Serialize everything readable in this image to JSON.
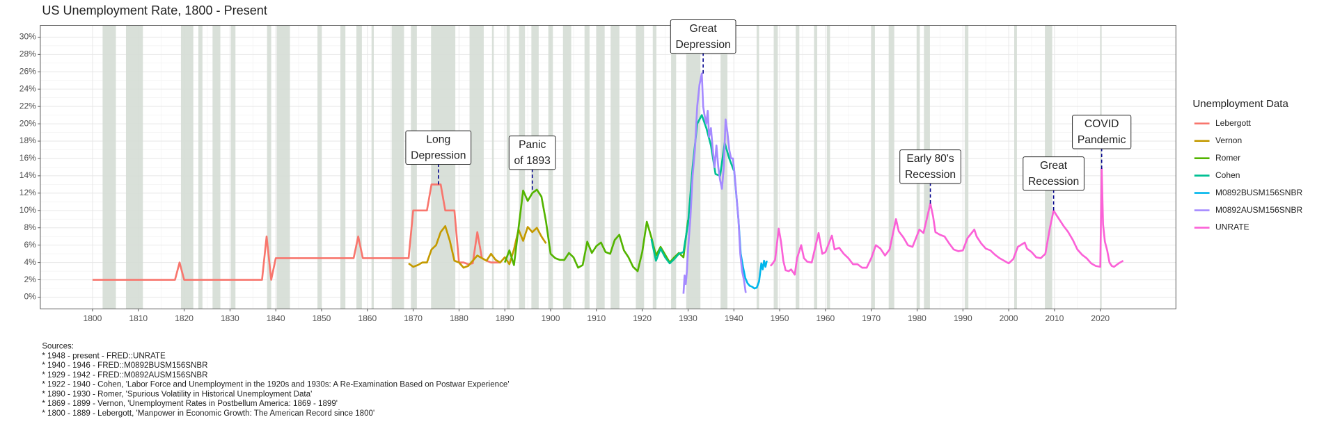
{
  "chart_data": {
    "type": "line",
    "title": "US Unemployment Rate, 1800 - Present",
    "legend": "right",
    "legend_title": "Unemployment Data",
    "grid": true,
    "xlim": [
      1788.6,
      2036.5
    ],
    "ylim": [
      -1.35,
      31.35
    ],
    "xticks": [
      1800,
      1810,
      1820,
      1830,
      1840,
      1850,
      1860,
      1870,
      1880,
      1890,
      1900,
      1910,
      1920,
      1930,
      1940,
      1950,
      1960,
      1970,
      1980,
      1990,
      2000,
      2010,
      2020
    ],
    "yticks": [
      {
        "value": 0,
        "label": "0%"
      },
      {
        "value": 2,
        "label": "2%"
      },
      {
        "value": 4,
        "label": "4%"
      },
      {
        "value": 6,
        "label": "6%"
      },
      {
        "value": 8,
        "label": "8%"
      },
      {
        "value": 10,
        "label": "10%"
      },
      {
        "value": 12,
        "label": "12%"
      },
      {
        "value": 14,
        "label": "14%"
      },
      {
        "value": 16,
        "label": "16%"
      },
      {
        "value": 18,
        "label": "18%"
      },
      {
        "value": 20,
        "label": "20%"
      },
      {
        "value": 22,
        "label": "22%"
      },
      {
        "value": 24,
        "label": "24%"
      },
      {
        "value": 26,
        "label": "26%"
      },
      {
        "value": 28,
        "label": "28%"
      },
      {
        "value": 30,
        "label": "30%"
      }
    ],
    "recession_color": "#d5ddd5",
    "recessions": [
      [
        1802.2,
        1805.1
      ],
      [
        1807.3,
        1811
      ],
      [
        1819.3,
        1822
      ],
      [
        1823.1,
        1824
      ],
      [
        1826.2,
        1827.9
      ],
      [
        1830.2,
        1831.2
      ],
      [
        1838.1,
        1839
      ],
      [
        1840.2,
        1843.1
      ],
      [
        1849.1,
        1850
      ],
      [
        1854.1,
        1855.2
      ],
      [
        1857.6,
        1858.8
      ],
      [
        1860.9,
        1861.4
      ],
      [
        1865.3,
        1868
      ],
      [
        1869.5,
        1870.8
      ],
      [
        1873.9,
        1879.2
      ],
      [
        1882.3,
        1885.4
      ],
      [
        1887.2,
        1887.6
      ],
      [
        1890.4,
        1891.1
      ],
      [
        1893.1,
        1894.4
      ],
      [
        1895.8,
        1897.4
      ],
      [
        1899.5,
        1900.5
      ],
      [
        1902.7,
        1904.5
      ],
      [
        1907.4,
        1908.5
      ],
      [
        1910,
        1911.8
      ],
      [
        1913.1,
        1915
      ],
      [
        1918.6,
        1920.4
      ],
      [
        1922.3,
        1923.1
      ],
      [
        1926.3,
        1927.4
      ],
      [
        1929.6,
        1932.7
      ],
      [
        1937.1,
        1938.6
      ],
      [
        1945,
        1945.5
      ],
      [
        1948.7,
        1949.6
      ],
      [
        1953.5,
        1954.3
      ],
      [
        1957.5,
        1958.2
      ],
      [
        1960.3,
        1961
      ],
      [
        1970,
        1970.8
      ],
      [
        1973.8,
        1975
      ],
      [
        1979.9,
        1980.6
      ],
      [
        1981.5,
        1982.8
      ],
      [
        1990.4,
        1991.2
      ],
      [
        2001.2,
        2001.8
      ],
      [
        2007.9,
        2009.5
      ],
      [
        2020,
        2020.3
      ]
    ],
    "series": [
      {
        "name": "Lebergott",
        "color": "#F8766D",
        "x": [
          1800,
          1801,
          1802,
          1803,
          1804,
          1805,
          1806,
          1807,
          1808,
          1809,
          1810,
          1811,
          1812,
          1813,
          1814,
          1815,
          1816,
          1817,
          1818,
          1819,
          1820,
          1821,
          1822,
          1823,
          1824,
          1825,
          1826,
          1827,
          1828,
          1829,
          1830,
          1831,
          1832,
          1833,
          1834,
          1835,
          1836,
          1837,
          1838,
          1839,
          1840,
          1841,
          1842,
          1843,
          1844,
          1845,
          1846,
          1847,
          1848,
          1849,
          1850,
          1851,
          1852,
          1853,
          1854,
          1855,
          1856,
          1857,
          1858,
          1859,
          1860,
          1861,
          1862,
          1863,
          1864,
          1865,
          1866,
          1867,
          1868,
          1869,
          1870,
          1871,
          1872,
          1873,
          1874,
          1875,
          1876,
          1877,
          1878,
          1879,
          1880,
          1881,
          1882,
          1883,
          1884,
          1885,
          1886,
          1887,
          1888,
          1889
        ],
        "values": [
          2,
          2,
          2,
          2,
          2,
          2,
          2,
          2,
          2,
          2,
          2,
          2,
          2,
          2,
          2,
          2,
          2,
          2,
          2,
          4,
          2,
          2,
          2,
          2,
          2,
          2,
          2,
          2,
          2,
          2,
          2,
          2,
          2,
          2,
          2,
          2,
          2,
          2,
          7,
          2,
          4.5,
          4.5,
          4.5,
          4.5,
          4.5,
          4.5,
          4.5,
          4.5,
          4.5,
          4.5,
          4.5,
          4.5,
          4.5,
          4.5,
          4.5,
          4.5,
          4.5,
          4.5,
          7,
          4.5,
          4.5,
          4.5,
          4.5,
          4.5,
          4.5,
          4.5,
          4.5,
          4.5,
          4.5,
          4.5,
          10,
          10,
          10,
          10,
          13,
          13,
          13,
          10,
          10,
          10,
          4,
          4,
          3.8,
          3.9,
          7.5,
          4.5,
          4.2,
          4,
          4,
          4
        ]
      },
      {
        "name": "Vernon",
        "color": "#C49A00",
        "x": [
          1869,
          1870,
          1871,
          1872,
          1873,
          1874,
          1875,
          1876,
          1877,
          1878,
          1879,
          1880,
          1881,
          1882,
          1883,
          1884,
          1885,
          1886,
          1887,
          1888,
          1889,
          1890,
          1891,
          1892,
          1893,
          1894,
          1895,
          1896,
          1897,
          1898,
          1899
        ],
        "values": [
          3.9,
          3.5,
          3.7,
          4,
          4,
          5.5,
          6,
          7.5,
          8.2,
          6.5,
          4.2,
          4,
          3.4,
          3.6,
          4.2,
          4.8,
          4.5,
          4.2,
          5,
          4.3,
          4,
          4.6,
          3.8,
          5.5,
          7.8,
          6.5,
          8.1,
          7.5,
          8,
          7,
          6.2
        ]
      },
      {
        "name": "Romer",
        "color": "#53B400",
        "x": [
          1890,
          1891,
          1892,
          1893,
          1894,
          1895,
          1896,
          1897,
          1898,
          1899,
          1900,
          1901,
          1902,
          1903,
          1904,
          1905,
          1906,
          1907,
          1908,
          1909,
          1910,
          1911,
          1912,
          1913,
          1914,
          1915,
          1916,
          1917,
          1918,
          1919,
          1920,
          1921,
          1922,
          1923,
          1924,
          1925,
          1926,
          1927,
          1928,
          1929,
          1930
        ],
        "values": [
          4.0,
          5.4,
          3.7,
          8.0,
          12.3,
          11.1,
          12.0,
          12.4,
          11.6,
          8.7,
          5.0,
          4.5,
          4.3,
          4.3,
          5.1,
          4.6,
          3.4,
          3.7,
          6.4,
          5.1,
          5.9,
          6.3,
          5.2,
          5.0,
          6.6,
          7.2,
          5.4,
          4.6,
          3.5,
          3.0,
          5.2,
          8.7,
          6.9,
          4.8,
          5.8,
          4.9,
          4.0,
          4.6,
          5.1,
          4.6,
          8.9
        ]
      },
      {
        "name": "Cohen",
        "color": "#00C094",
        "x": [
          1922,
          1923,
          1924,
          1925,
          1926,
          1927,
          1928,
          1929,
          1930,
          1931,
          1932,
          1933,
          1934,
          1935,
          1936,
          1937,
          1938,
          1939,
          1940
        ],
        "values": [
          6.7,
          4.2,
          5.6,
          4.6,
          3.9,
          4.4,
          5.0,
          5.2,
          8.5,
          15.0,
          20.0,
          21.0,
          19.5,
          17.5,
          14.2,
          14.0,
          17.8,
          16.0,
          14.6
        ]
      },
      {
        "name": "M0892BUSM156SNBR",
        "color": "#00B6EB",
        "x": [
          1940,
          1940.5,
          1941,
          1941.5,
          1942,
          1942.5,
          1943,
          1943.5,
          1944,
          1944.5,
          1945,
          1945.5,
          1946,
          1946.3,
          1946.6,
          1946.9,
          1947.2
        ],
        "values": [
          15,
          12,
          9,
          5,
          3.5,
          2.2,
          1.6,
          1.3,
          1.2,
          1,
          1.1,
          1.8,
          3.9,
          3.2,
          4.2,
          3.5,
          4.2
        ]
      },
      {
        "name": "M0892AUSM156SNBR",
        "color": "#A58AFF",
        "x": [
          1929,
          1929.25,
          1929.5,
          1929.75,
          1930,
          1930.5,
          1931,
          1931.5,
          1932,
          1932.5,
          1933,
          1933.3,
          1933.6,
          1934,
          1934.3,
          1934.6,
          1935,
          1935.4,
          1935.8,
          1936.2,
          1936.6,
          1937,
          1937.4,
          1937.8,
          1938.2,
          1938.6,
          1939,
          1939.4,
          1939.8,
          1940.2,
          1940.6,
          1941,
          1941.4,
          1941.8,
          1942.2,
          1942.6
        ],
        "values": [
          0.4,
          2.5,
          1.5,
          3,
          5.5,
          9,
          14,
          17,
          22,
          24.5,
          25.8,
          22,
          21,
          20,
          21.5,
          18.5,
          19.5,
          17,
          15,
          17.5,
          15,
          13.5,
          12.5,
          15,
          20.5,
          19,
          17,
          16,
          16,
          14,
          11.5,
          9,
          5,
          3,
          2,
          0.5
        ]
      },
      {
        "name": "UNRATE",
        "color": "#FB61D7",
        "x": [
          1948,
          1948.5,
          1949,
          1949.8,
          1950.3,
          1950.8,
          1951.3,
          1952,
          1952.5,
          1953.3,
          1953.8,
          1954.7,
          1955.3,
          1956,
          1957,
          1958.5,
          1959.3,
          1960,
          1961.4,
          1962,
          1963,
          1964,
          1965,
          1966,
          1967,
          1968,
          1969,
          1970,
          1971,
          1972,
          1973,
          1974,
          1975.4,
          1976,
          1977,
          1978,
          1979,
          1980.5,
          1981.4,
          1982.9,
          1983.5,
          1984,
          1985,
          1986,
          1987,
          1988,
          1989,
          1990,
          1991,
          1992.5,
          1993,
          1994,
          1995,
          1996,
          1997,
          1998,
          1999,
          2000,
          2001,
          2002,
          2003.5,
          2004,
          2005,
          2006,
          2007,
          2008,
          2009,
          2009.8,
          2010.5,
          2011,
          2012,
          2013,
          2014,
          2015,
          2016,
          2017,
          2018,
          2019,
          2020,
          2020.3,
          2020.6,
          2021,
          2021.5,
          2022,
          2022.5,
          2023,
          2024,
          2025
        ],
        "values": [
          3.6,
          3.9,
          4.3,
          7.9,
          6.4,
          4.2,
          3.1,
          3.0,
          3.2,
          2.6,
          4.5,
          6.0,
          4.5,
          4.1,
          4.0,
          7.4,
          5.0,
          5.2,
          7.1,
          5.5,
          5.7,
          5.0,
          4.5,
          3.8,
          3.8,
          3.4,
          3.4,
          4.5,
          6.0,
          5.6,
          4.8,
          5.5,
          9.0,
          7.6,
          6.9,
          6.0,
          5.8,
          7.8,
          7.4,
          10.8,
          9.3,
          7.5,
          7.2,
          7.0,
          6.2,
          5.5,
          5.3,
          5.4,
          6.8,
          7.8,
          7.0,
          6.2,
          5.6,
          5.4,
          4.9,
          4.5,
          4.2,
          3.9,
          4.4,
          5.8,
          6.3,
          5.6,
          5.2,
          4.6,
          4.5,
          5.0,
          8.0,
          10.0,
          9.4,
          9.0,
          8.2,
          7.5,
          6.6,
          5.5,
          4.9,
          4.5,
          3.9,
          3.6,
          3.5,
          14.8,
          8.4,
          6.4,
          5.4,
          4.0,
          3.6,
          3.5,
          3.9,
          4.2
        ]
      }
    ],
    "annotations": [
      {
        "text": [
          "Long",
          "Depression"
        ],
        "x": 1875.5,
        "y": 13
      },
      {
        "text": [
          "Panic",
          "of 1893"
        ],
        "x": 1896,
        "y": 12.4
      },
      {
        "text": [
          "Great",
          "Depression"
        ],
        "x": 1933.3,
        "y": 25.8
      },
      {
        "text": [
          "Early 80's",
          "Recession"
        ],
        "x": 1982.9,
        "y": 10.8
      },
      {
        "text": [
          "Great",
          "Recession"
        ],
        "x": 2009.8,
        "y": 10
      },
      {
        "text": [
          "COVID",
          "Pandemic"
        ],
        "x": 2020.3,
        "y": 14.8
      }
    ],
    "caption": [
      "Sources:",
      "* 1948 - present - FRED::UNRATE",
      "* 1940 - 1946 - FRED::M0892BUSM156SNBR",
      "* 1929 - 1942 - FRED::M0892AUSM156SNBR",
      "* 1922 - 1940 - Cohen, 'Labor Force and Unemployment in the 1920s and 1930s: A Re-Examination Based on Postwar Experience'",
      "* 1890 - 1930 - Romer, 'Spurious Volatility in Historical Unemployment Data'",
      "* 1869 - 1899 - Vernon, 'Unemployment Rates in Postbellum America: 1869 - 1899'",
      "* 1800 - 1889 - Lebergott, 'Manpower in Economic Growth: The American Record since 1800'"
    ]
  }
}
